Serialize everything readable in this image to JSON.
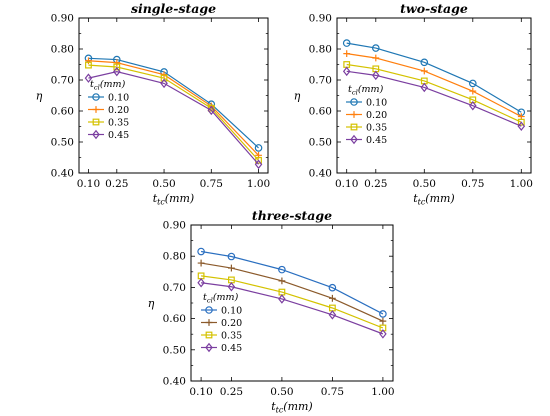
{
  "chart_data": [
    {
      "type": "line",
      "title": "single-stage",
      "xlabel": "t_tc(mm)",
      "ylabel": "η",
      "x": [
        0.1,
        0.25,
        0.5,
        0.75,
        1.0
      ],
      "x_tick_labels": [
        "0.10",
        "0.25",
        "0.50",
        "0.75",
        "1.00"
      ],
      "xlim": [
        0.05,
        1.05
      ],
      "ylim": [
        0.4,
        0.9
      ],
      "y_ticks": [
        "0.40",
        "0.50",
        "0.60",
        "0.70",
        "0.80",
        "0.90"
      ],
      "legend_title": "t_cl(mm)",
      "legend_position": "center-left",
      "series": [
        {
          "name": "0.10",
          "values": [
            0.77,
            0.766,
            0.726,
            0.622,
            0.481
          ]
        },
        {
          "name": "0.20",
          "values": [
            0.762,
            0.756,
            0.717,
            0.616,
            0.457
          ]
        },
        {
          "name": "0.35",
          "values": [
            0.748,
            0.742,
            0.706,
            0.609,
            0.441
          ]
        },
        {
          "name": "0.45",
          "values": [
            0.706,
            0.727,
            0.689,
            0.602,
            0.428
          ]
        }
      ]
    },
    {
      "type": "line",
      "title": "two-stage",
      "xlabel": "t_tc(mm)",
      "ylabel": "η",
      "x": [
        0.1,
        0.25,
        0.5,
        0.75,
        1.0
      ],
      "x_tick_labels": [
        "0.10",
        "0.25",
        "0.50",
        "0.75",
        "1.00"
      ],
      "xlim": [
        0.05,
        1.05
      ],
      "ylim": [
        0.4,
        0.9
      ],
      "y_ticks": [
        "0.40",
        "0.50",
        "0.60",
        "0.70",
        "0.80",
        "0.90"
      ],
      "legend_title": "t_cl(mm)",
      "legend_position": "lower-left",
      "series": [
        {
          "name": "0.10",
          "values": [
            0.819,
            0.803,
            0.757,
            0.689,
            0.596
          ]
        },
        {
          "name": "0.20",
          "values": [
            0.785,
            0.771,
            0.729,
            0.664,
            0.582
          ]
        },
        {
          "name": "0.35",
          "values": [
            0.75,
            0.736,
            0.697,
            0.636,
            0.564
          ]
        },
        {
          "name": "0.45",
          "values": [
            0.728,
            0.715,
            0.676,
            0.617,
            0.551
          ]
        }
      ]
    },
    {
      "type": "line",
      "title": "three-stage",
      "xlabel": "t_tc(mm)",
      "ylabel": "η",
      "x": [
        0.1,
        0.25,
        0.5,
        0.75,
        1.0
      ],
      "x_tick_labels": [
        "0.10",
        "0.25",
        "0.50",
        "0.75",
        "1.00"
      ],
      "xlim": [
        0.05,
        1.05
      ],
      "ylim": [
        0.4,
        0.9
      ],
      "y_ticks": [
        "0.40",
        "0.50",
        "0.60",
        "0.70",
        "0.80",
        "0.90"
      ],
      "legend_title": "t_cl(mm)",
      "legend_position": "lower-left",
      "series": [
        {
          "name": "0.10",
          "values": [
            0.815,
            0.799,
            0.757,
            0.699,
            0.615
          ]
        },
        {
          "name": "0.20",
          "values": [
            0.778,
            0.762,
            0.721,
            0.665,
            0.592
          ]
        },
        {
          "name": "0.35",
          "values": [
            0.737,
            0.724,
            0.685,
            0.634,
            0.57
          ]
        },
        {
          "name": "0.45",
          "values": [
            0.715,
            0.702,
            0.663,
            0.612,
            0.551
          ]
        }
      ]
    }
  ],
  "colors": [
    "#1f77b4",
    "#ff7f0e",
    "#d4c200",
    "#7b3fa0"
  ],
  "colors_panel3": [
    "#2a6fc0",
    "#8b5a2b",
    "#d4c200",
    "#7b3fa0"
  ],
  "markers": [
    "circle",
    "plus",
    "square",
    "diamond"
  ]
}
